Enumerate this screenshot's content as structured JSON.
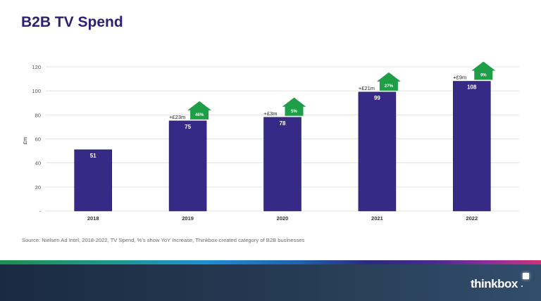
{
  "slide": {
    "title": "B2B TV Spend",
    "source": "Source: Nielsen Ad Intel, 2018-2022, TV Spend, %'s show YoY Increase, Thinkbox-created category of B2B businesses",
    "logo_text": "thinkbox"
  },
  "colors": {
    "title": "#2b2177",
    "bar": "#372a86",
    "arrow": "#1e9e47",
    "grid": "#e3e3e3"
  },
  "chart_data": {
    "type": "bar",
    "title": "B2B TV Spend",
    "xlabel": "",
    "ylabel": "£m",
    "ylim": [
      0,
      120
    ],
    "grid": true,
    "yticks": [
      0,
      20,
      40,
      60,
      80,
      100,
      120
    ],
    "ytick_labels": [
      "-",
      "20",
      "40",
      "60",
      "80",
      "100",
      "120"
    ],
    "categories": [
      "2018",
      "2019",
      "2020",
      "2021",
      "2022"
    ],
    "values": [
      51,
      75,
      78,
      99,
      108
    ],
    "data_labels": [
      "51",
      "75",
      "78",
      "99",
      "108"
    ],
    "yoy_change_labels": [
      "",
      "+£23m",
      "+£3m",
      "+£21m",
      "+£9m"
    ],
    "yoy_percent_labels": [
      "",
      "46%",
      "5%",
      "27%",
      "9%"
    ]
  }
}
